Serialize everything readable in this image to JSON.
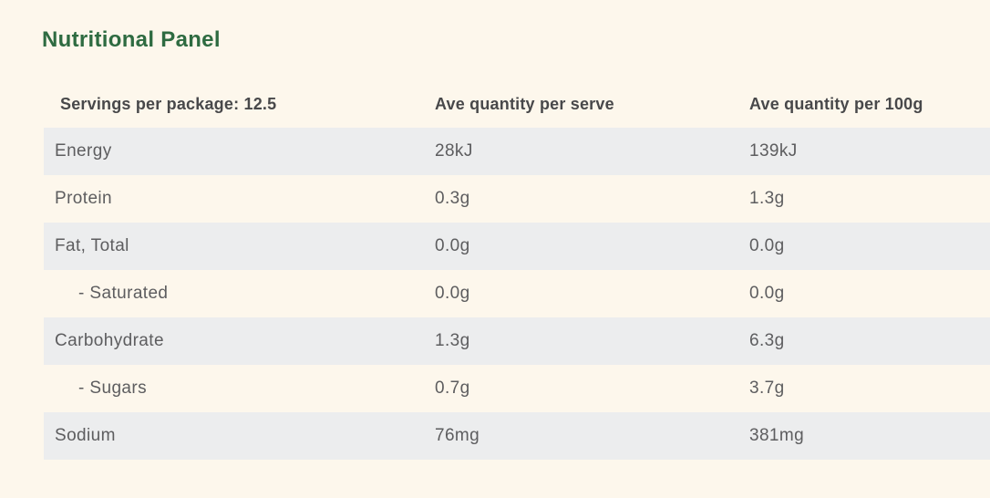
{
  "page": {
    "title": "Nutritional Panel",
    "colors": {
      "background": "#fdf7ec",
      "row_shaded": "#ecedee",
      "title_green": "#2e6b41",
      "header_text": "#48484a",
      "body_text": "#5d5d5f"
    }
  },
  "table": {
    "headers": [
      "Servings per package: 12.5",
      "Ave quantity per serve",
      "Ave quantity per 100g"
    ],
    "rows": [
      {
        "label": "Energy",
        "per_serve": "28kJ",
        "per_100g": "139kJ",
        "indent": false,
        "shaded": true
      },
      {
        "label": "Protein",
        "per_serve": "0.3g",
        "per_100g": "1.3g",
        "indent": false,
        "shaded": false
      },
      {
        "label": "Fat, Total",
        "per_serve": "0.0g",
        "per_100g": "0.0g",
        "indent": false,
        "shaded": true
      },
      {
        "label": "- Saturated",
        "per_serve": "0.0g",
        "per_100g": "0.0g",
        "indent": true,
        "shaded": false
      },
      {
        "label": "Carbohydrate",
        "per_serve": "1.3g",
        "per_100g": "6.3g",
        "indent": false,
        "shaded": true
      },
      {
        "label": "- Sugars",
        "per_serve": "0.7g",
        "per_100g": "3.7g",
        "indent": true,
        "shaded": false
      },
      {
        "label": "Sodium",
        "per_serve": "76mg",
        "per_100g": "381mg",
        "indent": false,
        "shaded": true
      }
    ]
  }
}
